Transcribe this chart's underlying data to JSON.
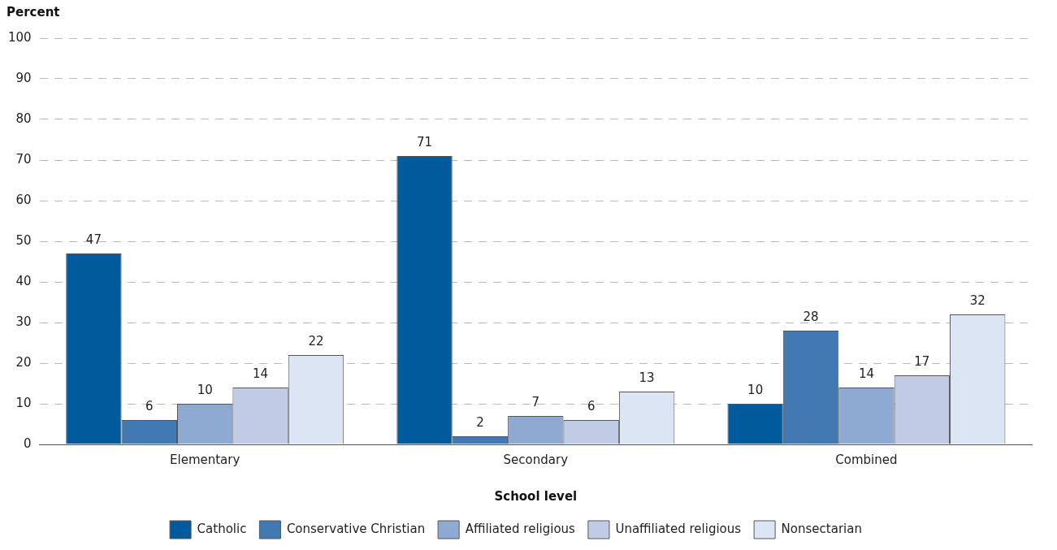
{
  "chart_data": {
    "type": "bar",
    "ylabel": "Percent",
    "xlabel": "School level",
    "categories": [
      "Elementary",
      "Secondary",
      "Combined"
    ],
    "series": [
      {
        "name": "Catholic",
        "color": "#005a9c",
        "values": [
          47,
          71,
          10
        ]
      },
      {
        "name": "Conservative Christian",
        "color": "#4379b2",
        "values": [
          6,
          2,
          28
        ]
      },
      {
        "name": "Affiliated religious",
        "color": "#8eaad3",
        "values": [
          10,
          7,
          14
        ]
      },
      {
        "name": "Unaffiliated religious",
        "color": "#c0cce6",
        "values": [
          14,
          6,
          17
        ]
      },
      {
        "name": "Nonsectarian",
        "color": "#dbe5f3",
        "values": [
          22,
          13,
          32
        ]
      }
    ],
    "ylim": [
      0,
      100
    ],
    "yticks": [
      0,
      10,
      20,
      30,
      40,
      50,
      60,
      70,
      80,
      90,
      100
    ],
    "grid": "y",
    "legend": "bottom",
    "data_labels": true
  }
}
